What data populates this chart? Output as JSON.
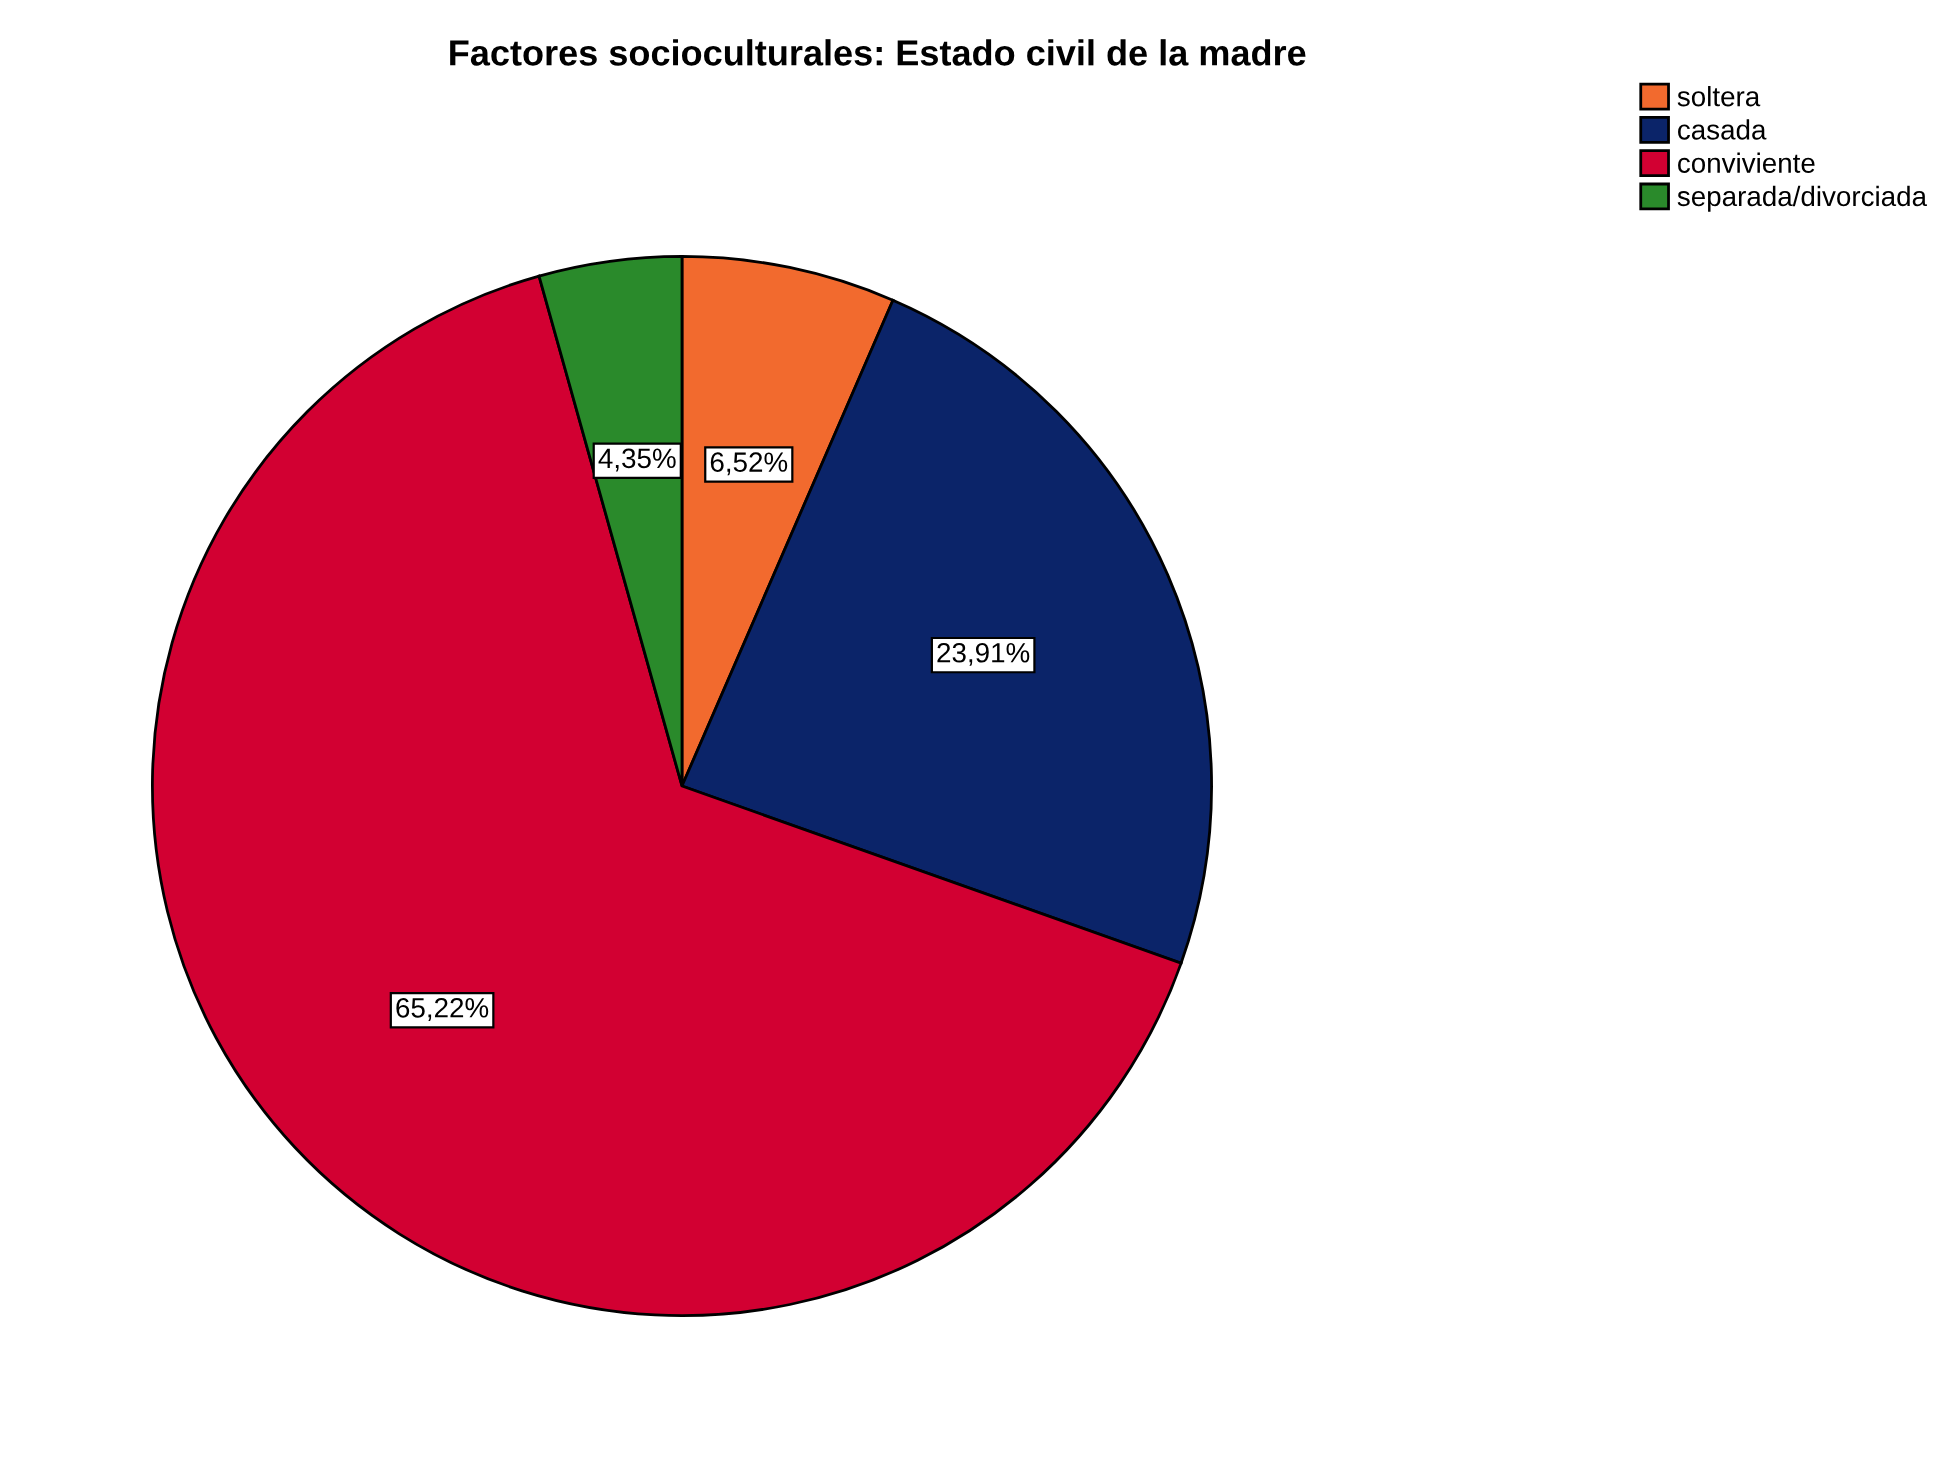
{
  "chart_data": {
    "type": "pie",
    "title": "Factores socioculturales: Estado civil de la madre",
    "categories": [
      "soltera",
      "casada",
      "conviviente",
      "separada/divorciada"
    ],
    "values": [
      6.52,
      23.91,
      65.22,
      4.35
    ],
    "colors": [
      "#f26a2e",
      "#0b2469",
      "#d20032",
      "#2a8a2b"
    ],
    "value_labels": [
      "6,52%",
      "23,91%",
      "65,22%",
      "4,35%"
    ],
    "legend": "top right"
  }
}
